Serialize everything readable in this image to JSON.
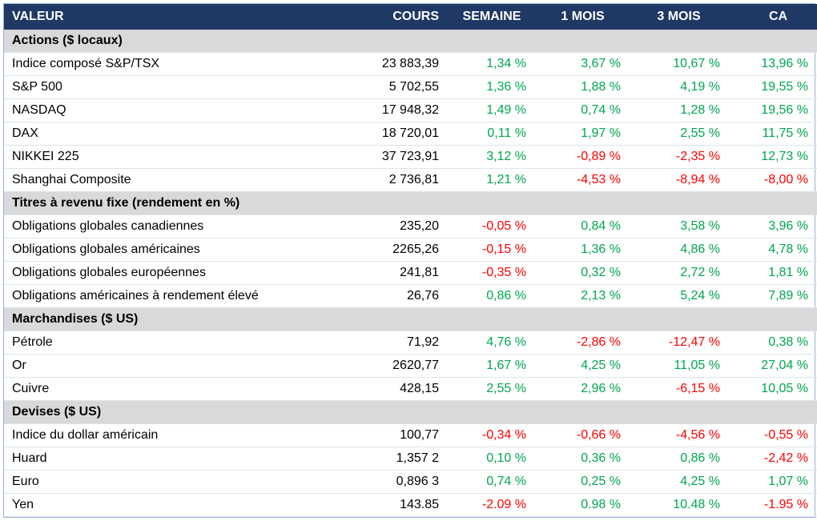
{
  "colors": {
    "header_bg": "#1F3864",
    "header_text": "#FFFFFF",
    "section_bg": "#D9D9D9",
    "positive": "#00A651",
    "negative": "#FF0000",
    "row_border": "#DCE3EE",
    "outer_border": "#9AB3D5",
    "text": "#000000"
  },
  "chart_data": {
    "type": "table",
    "columns": [
      "VALEUR",
      "COURS",
      "SEMAINE",
      "1 MOIS",
      "3 MOIS",
      "CA"
    ],
    "sections": [
      {
        "title": "Actions ($ locaux)",
        "rows": [
          {
            "label": "Indice composé S&P/TSX",
            "values": [
              "23 883,39",
              "1,34 %",
              "3,67 %",
              "10,67 %",
              "13,96 %"
            ]
          },
          {
            "label": "S&P 500",
            "values": [
              "5 702,55",
              "1,36 %",
              "1,88 %",
              "4,19 %",
              "19,55 %"
            ]
          },
          {
            "label": "NASDAQ",
            "values": [
              "17 948,32",
              "1,49 %",
              "0,74 %",
              "1,28 %",
              "19,56 %"
            ]
          },
          {
            "label": "DAX",
            "values": [
              "18 720,01",
              "0,11 %",
              "1,97 %",
              "2,55 %",
              "11,75 %"
            ]
          },
          {
            "label": "NIKKEI 225",
            "values": [
              "37 723,91",
              "3,12 %",
              "-0,89 %",
              "-2,35 %",
              "12,73 %"
            ]
          },
          {
            "label": "Shanghai Composite",
            "values": [
              "2 736,81",
              "1,21 %",
              "-4,53 %",
              "-8,94 %",
              "-8,00 %"
            ]
          }
        ]
      },
      {
        "title": "Titres à revenu fixe (rendement en %)",
        "rows": [
          {
            "label": "Obligations globales canadiennes",
            "values": [
              "235,20",
              "-0,05 %",
              "0,84 %",
              "3,58 %",
              "3,96 %"
            ]
          },
          {
            "label": "Obligations globales américaines",
            "values": [
              "2265,26",
              "-0,15 %",
              "1,36 %",
              "4,86 %",
              "4,78 %"
            ]
          },
          {
            "label": "Obligations globales européennes",
            "values": [
              "241,81",
              "-0,35 %",
              "0,32 %",
              "2,72 %",
              "1,81 %"
            ]
          },
          {
            "label": "Obligations américaines à rendement élevé",
            "values": [
              "26,76",
              "0,86 %",
              "2,13 %",
              "5,24 %",
              "7,89 %"
            ]
          }
        ]
      },
      {
        "title": "Marchandises ($ US)",
        "rows": [
          {
            "label": "Pétrole",
            "values": [
              "71,92",
              "4,76 %",
              "-2,86 %",
              "-12,47 %",
              "0,38 %"
            ]
          },
          {
            "label": "Or",
            "values": [
              "2620,77",
              "1,67 %",
              "4,25 %",
              "11,05 %",
              "27,04 %"
            ]
          },
          {
            "label": "Cuivre",
            "values": [
              "428,15",
              "2,55 %",
              "2,96 %",
              "-6,15 %",
              "10,05 %"
            ]
          }
        ]
      },
      {
        "title": "Devises ($ US)",
        "rows": [
          {
            "label": "Indice du dollar américain",
            "values": [
              "100,77",
              "-0,34 %",
              "-0,66 %",
              "-4,56 %",
              "-0,55 %"
            ]
          },
          {
            "label": "Huard",
            "values": [
              "1,357 2",
              "0,10 %",
              "0,36 %",
              "0,86 %",
              "-2,42 %"
            ]
          },
          {
            "label": "Euro",
            "values": [
              "0,896 3",
              "0,74 %",
              "0,25 %",
              "4,25 %",
              "1,07 %"
            ]
          },
          {
            "label": "Yen",
            "values": [
              "143.85",
              "-2.09 %",
              "0.98 %",
              "10.48 %",
              "-1.95 %"
            ]
          }
        ]
      }
    ]
  }
}
